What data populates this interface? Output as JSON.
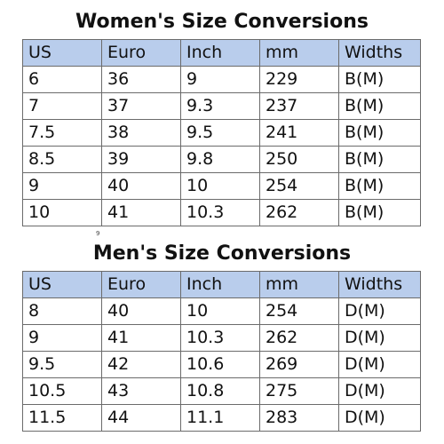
{
  "women": {
    "title": "Women's Size Conversions",
    "headers": [
      "US",
      "Euro",
      "Inch",
      "mm",
      "Widths"
    ],
    "rows": [
      [
        "6",
        "36",
        "9",
        "229",
        "B(M)"
      ],
      [
        "7",
        "37",
        "9.3",
        "237",
        "B(M)"
      ],
      [
        "7.5",
        "38",
        "9.5",
        "241",
        "B(M)"
      ],
      [
        "8.5",
        "39",
        "9.8",
        "250",
        "B(M)"
      ],
      [
        "9",
        "40",
        "10",
        "254",
        "B(M)"
      ],
      [
        "10",
        "41",
        "10.3",
        "262",
        "B(M)"
      ]
    ]
  },
  "stray_mark": "9",
  "men": {
    "title": "Men's Size Conversions",
    "headers": [
      "US",
      "Euro",
      "Inch",
      "mm",
      "Widths"
    ],
    "rows": [
      [
        "8",
        "40",
        "10",
        "254",
        "D(M)"
      ],
      [
        "9",
        "41",
        "10.3",
        "262",
        "D(M)"
      ],
      [
        "9.5",
        "42",
        "10.6",
        "269",
        "D(M)"
      ],
      [
        "10.5",
        "43",
        "10.8",
        "275",
        "D(M)"
      ],
      [
        "11.5",
        "44",
        "11.1",
        "283",
        "D(M)"
      ]
    ]
  },
  "colors": {
    "header_fill": "#b9cdec",
    "border": "#6b6b6b"
  }
}
